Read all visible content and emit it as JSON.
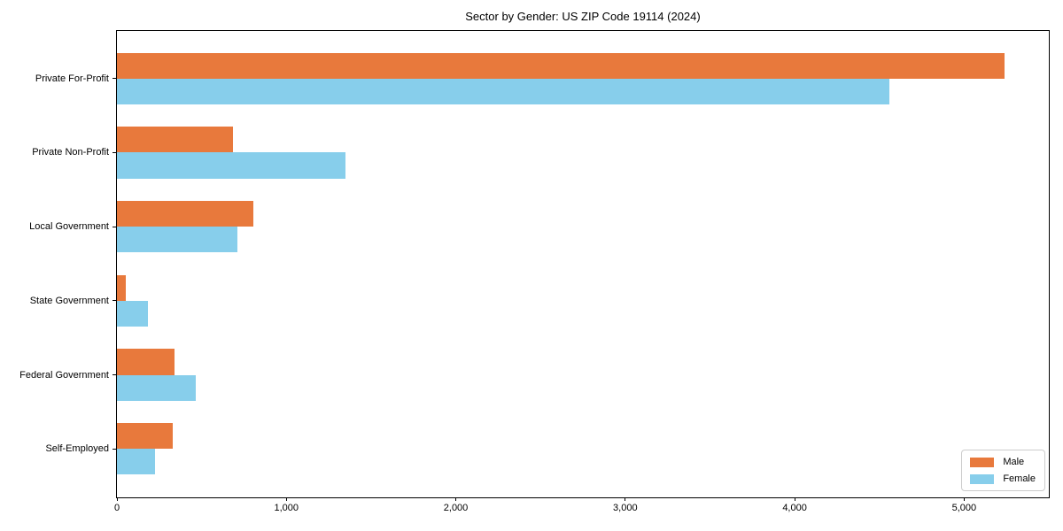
{
  "chart_data": {
    "type": "bar",
    "orientation": "horizontal",
    "title": "Sector by Gender: US ZIP Code 19114 (2024)",
    "categories": [
      "Private For-Profit",
      "Private Non-Profit",
      "Local Government",
      "State Government",
      "Federal Government",
      "Self-Employed"
    ],
    "series": [
      {
        "name": "Male",
        "color": "#E8793C",
        "values": [
          5240,
          685,
          805,
          50,
          340,
          330
        ]
      },
      {
        "name": "Female",
        "color": "#87CEEB",
        "values": [
          4560,
          1350,
          710,
          185,
          465,
          225
        ]
      }
    ],
    "xlabel": "",
    "ylabel": "",
    "xlim": [
      0,
      5500
    ],
    "xticks": [
      {
        "v": 0,
        "label": "0"
      },
      {
        "v": 1000,
        "label": "1,000"
      },
      {
        "v": 2000,
        "label": "2,000"
      },
      {
        "v": 3000,
        "label": "3,000"
      },
      {
        "v": 4000,
        "label": "4,000"
      },
      {
        "v": 5000,
        "label": "5,000"
      }
    ],
    "grid": false,
    "legend": {
      "position": "lower right",
      "entries": [
        "Male",
        "Female"
      ]
    }
  }
}
